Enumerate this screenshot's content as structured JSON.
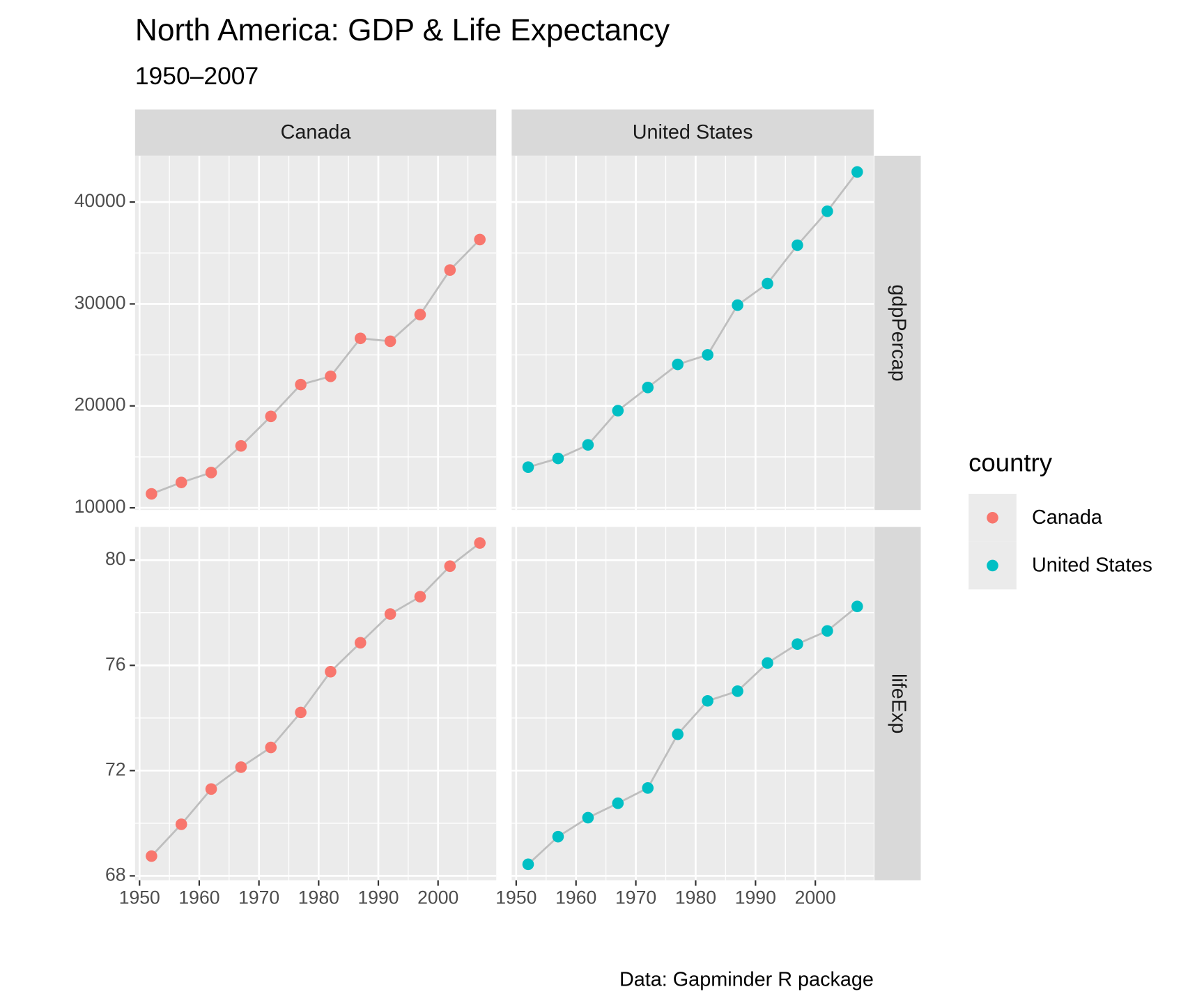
{
  "chart_data": {
    "type": "line",
    "title": "North America: GDP & Life Expectancy",
    "subtitle": "1950–2007",
    "caption": "Data: Gapminder R package",
    "legend_title": "country",
    "legend_position": "right",
    "grid": true,
    "line_color": "#BEBEBE",
    "x": [
      1952,
      1957,
      1962,
      1967,
      1972,
      1977,
      1982,
      1987,
      1992,
      1997,
      2002,
      2007
    ],
    "xlim": [
      1949.25,
      2009.75
    ],
    "xticks": [
      1950,
      1960,
      1970,
      1980,
      1990,
      2000
    ],
    "facets": [
      "Canada",
      "United States"
    ],
    "rows": [
      {
        "variable": "gdpPercap",
        "ylim": [
          9787,
          44531
        ],
        "yticks": [
          10000,
          20000,
          30000,
          40000
        ]
      },
      {
        "variable": "lifeExp",
        "ylim": [
          67.83,
          81.26
        ],
        "yticks": [
          68,
          72,
          76,
          80
        ]
      }
    ],
    "series": [
      {
        "name": "Canada",
        "color": "#F8766D",
        "gdpPercap": [
          11367.16,
          12489.95,
          13462.49,
          16076.59,
          18970.57,
          22090.88,
          22898.79,
          26626.52,
          26342.88,
          28954.93,
          33328.97,
          36319.24
        ],
        "lifeExp": [
          68.75,
          69.96,
          71.3,
          72.13,
          72.88,
          74.21,
          75.76,
          76.86,
          77.95,
          78.61,
          79.77,
          80.65
        ]
      },
      {
        "name": "United States",
        "color": "#00BFC4",
        "gdpPercap": [
          13990.48,
          14847.13,
          16173.15,
          19530.37,
          21806.04,
          24072.63,
          25009.56,
          29884.35,
          32003.93,
          35767.43,
          39097.1,
          42951.65
        ],
        "lifeExp": [
          68.44,
          69.49,
          70.21,
          70.76,
          71.34,
          73.38,
          74.65,
          75.02,
          76.09,
          76.81,
          77.31,
          78.24
        ]
      }
    ]
  }
}
